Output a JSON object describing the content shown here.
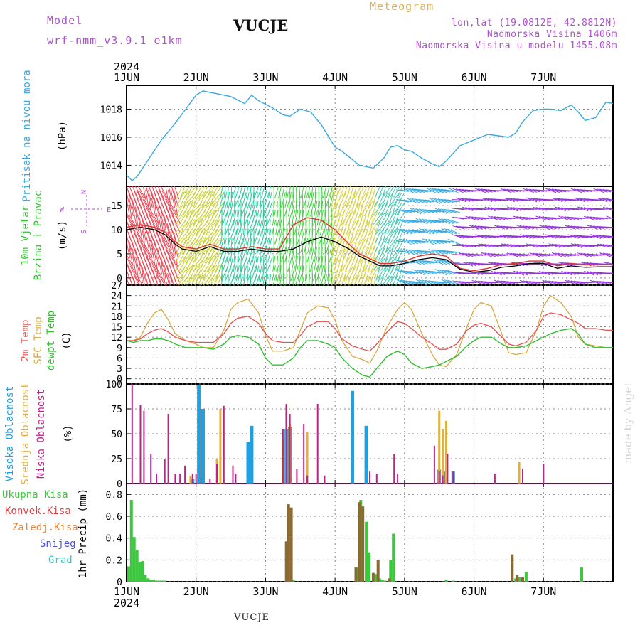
{
  "header": {
    "model_label": "Model",
    "model_name": "wrf-nmm_v3.9.1 e1km",
    "station": "VUCJE",
    "meteogram": "Meteogram",
    "lonlat": "lon,lat (19.0812E, 42.8812N)",
    "altitude": "Nadmorska Visina 1406m",
    "model_altitude": "Nadmorska Visina u modelu 1455.08m"
  },
  "footer": {
    "station": "VUCJE",
    "credit": "made by Angel"
  },
  "colors": {
    "pressure": "#3aa8e0",
    "wind_black": "#000000",
    "wind_red": "#e03030",
    "t2m": "#e85050",
    "tsfc": "#d8a840",
    "dewp": "#30c030",
    "high_cloud": "#1fa0e0",
    "mid_cloud": "#e0b040",
    "low_cloud": "#c0208a",
    "total_precip": "#3cc83c",
    "conv_precip": "#e04040",
    "frozen_precip": "#f08030",
    "snow": "#5050e0",
    "hail": "#30c8c8"
  },
  "chart_data": [
    {
      "type": "line",
      "x_year": "2024",
      "x_ticks": [
        "1JUN",
        "2JUN",
        "3JUN",
        "4JUN",
        "5JUN",
        "6JUN",
        "7JUN"
      ],
      "ylabel": [
        "Pritisak na nivou mora",
        "(hPa)"
      ],
      "y_ticks": [
        1014,
        1016,
        1018
      ],
      "ylim": [
        1012.5,
        1019.7
      ],
      "series": [
        {
          "name": "Pritisak na nivou mora",
          "x_days": [
            0,
            0.08,
            0.15,
            0.3,
            0.5,
            0.7,
            0.85,
            1.0,
            1.1,
            1.3,
            1.5,
            1.7,
            1.8,
            1.9,
            2.1,
            2.25,
            2.35,
            2.5,
            2.65,
            2.8,
            3.0,
            3.1,
            3.2,
            3.35,
            3.55,
            3.7,
            3.8,
            3.9,
            4.0,
            4.1,
            4.25,
            4.4,
            4.5,
            4.6,
            4.8,
            5.0,
            5.2,
            5.35,
            5.5,
            5.6,
            5.7,
            5.85,
            6.0,
            6.1,
            6.25,
            6.4,
            6.5,
            6.6,
            6.75,
            6.9,
            7.0
          ],
          "values": [
            1013.3,
            1012.9,
            1013.2,
            1014.3,
            1015.8,
            1017.0,
            1018.0,
            1019.0,
            1019.3,
            1019.1,
            1018.9,
            1018.4,
            1019.0,
            1018.6,
            1018.1,
            1017.6,
            1017.5,
            1018.0,
            1017.8,
            1016.9,
            1015.3,
            1015.0,
            1014.6,
            1014.0,
            1013.8,
            1014.5,
            1015.3,
            1015.4,
            1015.1,
            1015.0,
            1014.5,
            1014.1,
            1013.9,
            1014.3,
            1015.4,
            1015.8,
            1016.2,
            1016.1,
            1016.0,
            1016.3,
            1017.1,
            1017.9,
            1018.0,
            1018.0,
            1017.9,
            1018.3,
            1017.8,
            1017.2,
            1017.4,
            1018.5,
            1018.4
          ]
        }
      ]
    },
    {
      "type": "line",
      "ylabel": [
        "10m Vjetar",
        "Brzina i Pravac",
        "(m/s)"
      ],
      "compass": [
        "N",
        "W",
        "E",
        "S"
      ],
      "y_ticks": [
        0,
        5,
        10,
        15
      ],
      "ylim": [
        -1.5,
        19
      ],
      "series": [
        {
          "name": "10m Vjetar Brzina",
          "x_days": [
            0,
            0.2,
            0.4,
            0.55,
            0.7,
            0.8,
            1.0,
            1.2,
            1.4,
            1.6,
            1.8,
            2.0,
            2.2,
            2.4,
            2.6,
            2.8,
            3.0,
            3.2,
            3.35,
            3.5,
            3.65,
            3.8,
            4.0,
            4.2,
            4.4,
            4.6,
            4.8,
            5.0,
            5.2,
            5.4,
            5.6,
            5.8,
            6.0,
            6.2,
            6.4,
            6.6,
            6.8,
            7.0
          ],
          "values": [
            10,
            10.5,
            10,
            9,
            7,
            6,
            5.5,
            6.5,
            5.5,
            5.5,
            6,
            5.5,
            5.5,
            6,
            7.5,
            8.5,
            7.5,
            6,
            4.5,
            3.5,
            2.5,
            2.5,
            3,
            3.8,
            4.2,
            3.8,
            1.8,
            1.2,
            1.5,
            2.2,
            2.5,
            3,
            3,
            2,
            2.5,
            2.2,
            2.3,
            2.3
          ]
        },
        {
          "name": "10m Vjetar Udar",
          "x_days": [
            0,
            0.2,
            0.4,
            0.55,
            0.7,
            0.8,
            1.0,
            1.2,
            1.4,
            1.6,
            1.8,
            2.0,
            2.2,
            2.4,
            2.6,
            2.8,
            3.0,
            3.2,
            3.35,
            3.5,
            3.65,
            3.8,
            4.0,
            4.2,
            4.4,
            4.6,
            4.8,
            5.0,
            5.2,
            5.4,
            5.6,
            5.8,
            6.0,
            6.2,
            6.4,
            6.6,
            6.8,
            7.0
          ],
          "values": [
            10.5,
            11,
            10.5,
            9.5,
            7.5,
            6.5,
            6,
            7,
            6,
            6,
            6.5,
            6,
            6,
            11,
            12.5,
            12,
            10,
            7,
            5,
            4,
            3,
            3,
            3.5,
            4.5,
            5,
            4.5,
            2,
            1.5,
            2,
            2.8,
            3,
            3.5,
            3.5,
            2.5,
            3,
            2.7,
            2.8,
            2.8
          ]
        }
      ]
    },
    {
      "type": "line",
      "ylabel": [
        "2m Temp",
        "SFC Temp",
        "dewpt Temp",
        "(C)"
      ],
      "y_ticks": [
        0,
        3,
        6,
        9,
        12,
        15,
        18,
        21,
        24,
        27
      ],
      "ylim": [
        -1.5,
        27
      ],
      "series": [
        {
          "name": "2m Temp",
          "x_days": [
            0,
            0.1,
            0.2,
            0.3,
            0.4,
            0.5,
            0.6,
            0.7,
            0.85,
            1.0,
            1.1,
            1.25,
            1.4,
            1.5,
            1.6,
            1.75,
            1.9,
            2.0,
            2.1,
            2.25,
            2.4,
            2.5,
            2.6,
            2.75,
            2.9,
            3.0,
            3.1,
            3.25,
            3.4,
            3.5,
            3.6,
            3.75,
            3.9,
            4.0,
            4.1,
            4.25,
            4.4,
            4.5,
            4.6,
            4.75,
            4.9,
            5.0,
            5.1,
            5.25,
            5.4,
            5.5,
            5.6,
            5.75,
            5.9,
            6.0,
            6.1,
            6.25,
            6.4,
            6.5,
            6.6,
            6.75,
            6.9,
            7.0
          ],
          "values": [
            11,
            11,
            11.5,
            13,
            14,
            14.5,
            13.5,
            12,
            11,
            10.5,
            10.5,
            10.5,
            13,
            16,
            17.5,
            18,
            16,
            13,
            11,
            10.5,
            10.5,
            12.5,
            15,
            16.5,
            16.5,
            14.5,
            11.5,
            9.5,
            8.5,
            8,
            10,
            13.5,
            16.5,
            16,
            14.5,
            12,
            10,
            8.5,
            8.5,
            10,
            14,
            15.5,
            16,
            15,
            12,
            10,
            9.5,
            10.5,
            14,
            18,
            19,
            18.5,
            17,
            16,
            14.5,
            14.5,
            14,
            14
          ]
        },
        {
          "name": "SFC Temp",
          "x_days": [
            0,
            0.1,
            0.2,
            0.3,
            0.4,
            0.5,
            0.6,
            0.7,
            0.85,
            1.0,
            1.1,
            1.25,
            1.4,
            1.5,
            1.6,
            1.75,
            1.9,
            2.0,
            2.1,
            2.25,
            2.4,
            2.5,
            2.6,
            2.75,
            2.9,
            3.0,
            3.1,
            3.25,
            3.4,
            3.5,
            3.6,
            3.75,
            3.9,
            4.0,
            4.1,
            4.25,
            4.4,
            4.5,
            4.6,
            4.75,
            4.9,
            5.0,
            5.1,
            5.25,
            5.4,
            5.5,
            5.6,
            5.75,
            5.9,
            6.0,
            6.1,
            6.25,
            6.4,
            6.5,
            6.6,
            6.75,
            6.9,
            7.0
          ],
          "values": [
            11,
            11,
            12,
            16,
            19,
            20,
            17,
            13,
            11,
            10,
            9,
            9,
            14,
            20,
            22,
            23,
            19,
            12.5,
            8,
            8,
            9,
            14,
            19,
            21,
            20.5,
            17,
            11,
            6.5,
            5.5,
            4.5,
            8,
            15,
            20,
            22,
            20,
            13,
            7,
            4,
            3.5,
            7,
            15,
            20,
            22,
            21,
            13,
            7.5,
            7,
            7.5,
            14,
            21,
            24,
            22,
            18,
            12,
            10,
            9.5,
            9,
            9
          ]
        },
        {
          "name": "dewpt Temp",
          "x_days": [
            0,
            0.1,
            0.2,
            0.3,
            0.4,
            0.5,
            0.6,
            0.7,
            0.85,
            1.0,
            1.1,
            1.25,
            1.4,
            1.5,
            1.6,
            1.75,
            1.9,
            2.0,
            2.1,
            2.25,
            2.4,
            2.5,
            2.6,
            2.75,
            2.9,
            3.0,
            3.1,
            3.25,
            3.4,
            3.5,
            3.6,
            3.75,
            3.9,
            4.0,
            4.1,
            4.25,
            4.4,
            4.5,
            4.6,
            4.75,
            4.9,
            5.0,
            5.1,
            5.25,
            5.4,
            5.5,
            5.6,
            5.75,
            5.9,
            6.0,
            6.1,
            6.25,
            6.4,
            6.5,
            6.6,
            6.75,
            6.9,
            7.0
          ],
          "values": [
            11,
            10.5,
            11,
            11,
            11.5,
            11.5,
            11,
            10,
            9,
            9,
            9,
            8.5,
            10,
            12,
            12.5,
            12,
            10,
            6,
            4,
            4,
            6,
            9,
            11,
            11,
            10,
            9,
            6,
            3,
            1,
            0.5,
            3,
            6.5,
            8,
            7,
            4.5,
            3,
            3.5,
            4,
            5,
            6.5,
            9.5,
            11,
            12,
            12,
            10,
            9,
            9,
            9.5,
            11,
            12,
            13,
            14,
            14.5,
            13,
            10,
            9,
            9,
            9
          ]
        }
      ]
    },
    {
      "type": "bar",
      "ylabel": [
        "Visoka Oblacnost",
        "Srednja Oblacnost",
        "Niska Oblacnost",
        "(%)"
      ],
      "y_ticks": [
        0,
        25,
        50,
        75,
        100
      ],
      "ylim": [
        0,
        100
      ],
      "series": [
        {
          "name": "Visoka Oblacnost",
          "x_days": [
            0.95,
            1.04,
            1.1,
            1.75,
            1.8,
            2.3,
            2.35,
            3.25,
            3.45,
            4.5,
            4.6,
            4.7
          ],
          "values": [
            5,
            99,
            75,
            42,
            58,
            55,
            57,
            93,
            58,
            14,
            12,
            12
          ]
        },
        {
          "name": "Srednja Oblacnost",
          "x_days": [
            0.92,
            1.3,
            1.35,
            2.25,
            2.3,
            2.35,
            2.6,
            4.5,
            4.55,
            4.6,
            5.65
          ],
          "values": [
            8,
            25,
            75,
            45,
            79,
            60,
            52,
            73,
            55,
            63,
            22
          ]
        },
        {
          "name": "Niska Oblacnost",
          "x_days": [
            0.08,
            0.2,
            0.25,
            0.35,
            0.43,
            0.55,
            0.6,
            0.7,
            0.77,
            0.84,
            0.95,
            1.0,
            1.2,
            1.3,
            1.4,
            1.53,
            1.57,
            2.25,
            2.3,
            2.35,
            2.45,
            2.55,
            2.6,
            2.75,
            2.85,
            3.5,
            3.6,
            3.85,
            3.9,
            4.43,
            4.5,
            4.55,
            4.62,
            4.7,
            5.3,
            5.7,
            6.0
          ],
          "values": [
            100,
            79,
            73,
            30,
            10,
            25,
            70,
            10,
            10,
            18,
            10,
            10,
            5,
            20,
            78,
            18,
            10,
            55,
            80,
            70,
            15,
            60,
            8,
            80,
            8,
            12,
            10,
            30,
            10,
            38,
            12,
            8,
            30,
            12,
            10,
            15,
            20
          ]
        }
      ]
    },
    {
      "type": "bar",
      "x_year": "2024",
      "x_ticks": [
        "1JUN",
        "2JUN",
        "3JUN",
        "4JUN",
        "5JUN",
        "6JUN",
        "7JUN"
      ],
      "ylabel": [
        "Ukupna Kisa",
        "Konvek.Kisa",
        "Zaledj.Kisa",
        "Snijeg",
        "Grad",
        "1hr Precip (mm)"
      ],
      "y_ticks": [
        0,
        0.2,
        0.4,
        0.6,
        0.8
      ],
      "ylim": [
        0,
        0.9
      ],
      "series": [
        {
          "name": "Ukupna Kisa",
          "x_days": [
            0.03,
            0.07,
            0.11,
            0.15,
            0.19,
            0.23,
            0.27,
            0.31,
            0.35,
            0.39,
            0.43,
            0.47,
            0.51,
            0.55,
            2.35,
            2.4,
            3.33,
            3.37,
            3.45,
            3.49,
            3.6,
            3.64,
            3.68,
            3.72,
            3.8,
            3.84,
            4.6,
            4.7,
            5.55,
            5.6,
            5.65,
            5.75,
            6.55
          ],
          "values": [
            0.14,
            0.75,
            0.41,
            0.29,
            0.18,
            0.19,
            0.06,
            0.03,
            0.02,
            0.02,
            0.01,
            0.01,
            0.01,
            0.01,
            0.02,
            0.02,
            0.13,
            0.75,
            0.55,
            0.27,
            0.07,
            0.03,
            0.02,
            0.01,
            0.2,
            0.44,
            0.02,
            0.01,
            0.01,
            0.03,
            0.04,
            0.09,
            0.13
          ]
        },
        {
          "name": "Konvek.Kisa",
          "x_days": [
            2.3,
            2.33,
            2.37,
            3.3,
            3.35,
            3.4,
            3.55,
            3.62,
            3.78,
            5.55,
            5.62,
            5.7
          ],
          "values": [
            0.37,
            0.71,
            0.68,
            0.13,
            0.73,
            0.69,
            0.08,
            0.2,
            0.03,
            0.25,
            0.06,
            0.04
          ]
        }
      ]
    }
  ]
}
